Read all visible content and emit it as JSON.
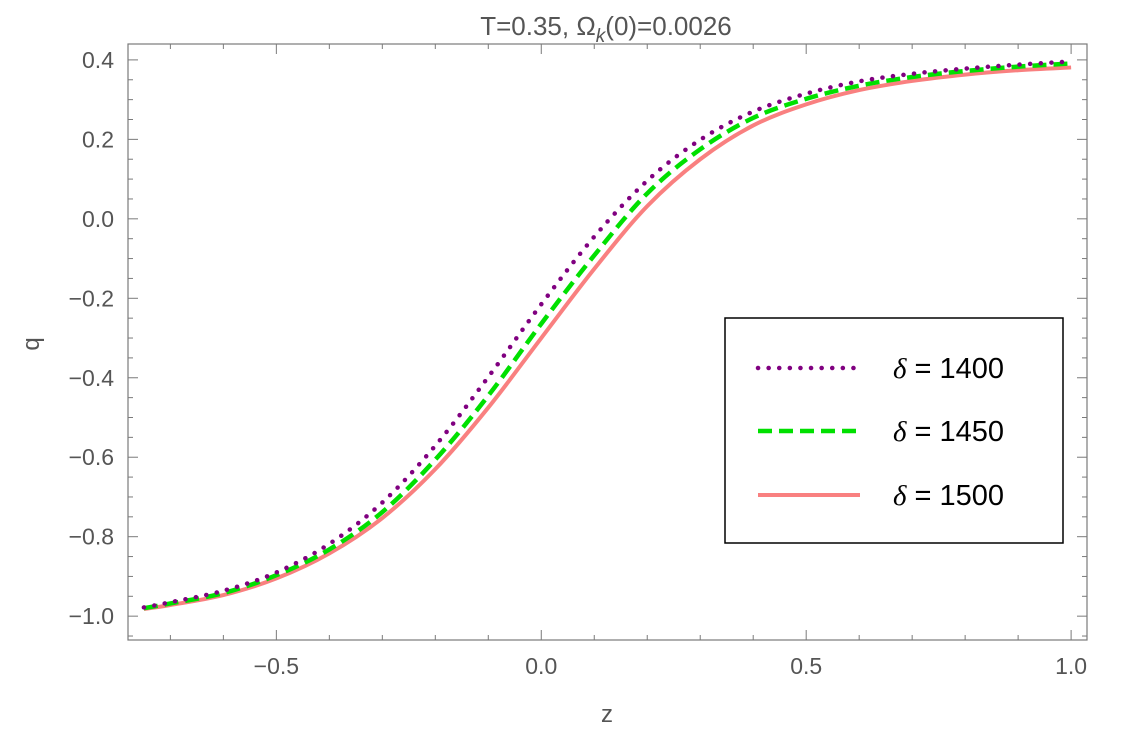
{
  "chart_data": {
    "type": "line",
    "title": "T=0.35, Ω",
    "title_sub": "k",
    "title_tail": "(0)=0.0026",
    "xlabel": "z",
    "ylabel": "q",
    "xlim": [
      -0.78,
      1.03
    ],
    "ylim": [
      -1.06,
      0.44
    ],
    "x_ticks": [
      -0.5,
      0.0,
      0.5,
      1.0
    ],
    "x_tick_labels": [
      "−0.5",
      "0.0",
      "0.5",
      "1.0"
    ],
    "y_ticks": [
      -1.0,
      -0.8,
      -0.6,
      -0.4,
      -0.2,
      0.0,
      0.2,
      0.4
    ],
    "y_tick_labels": [
      "−1.0",
      "−0.8",
      "−0.6",
      "−0.4",
      "−0.2",
      "0.0",
      "0.2",
      "0.4"
    ],
    "grid": false,
    "legend_position": "right",
    "series": [
      {
        "name": "δ = 1400",
        "symbol": "δ",
        "value_text": " = 1400",
        "color": "#800080",
        "style": "dotted",
        "x": [
          -0.75,
          -0.7,
          -0.6,
          -0.5,
          -0.4,
          -0.3,
          -0.2,
          -0.1,
          0.0,
          0.1,
          0.2,
          0.3,
          0.4,
          0.5,
          0.6,
          0.7,
          0.8,
          0.9,
          1.0
        ],
        "y": [
          -0.978,
          -0.965,
          -0.936,
          -0.89,
          -0.818,
          -0.714,
          -0.571,
          -0.398,
          -0.215,
          -0.045,
          0.096,
          0.199,
          0.27,
          0.315,
          0.346,
          0.365,
          0.378,
          0.388,
          0.396
        ]
      },
      {
        "name": "δ = 1450",
        "symbol": "δ",
        "value_text": " = 1450",
        "color": "#00e000",
        "style": "dashed",
        "x": [
          -0.75,
          -0.7,
          -0.6,
          -0.5,
          -0.4,
          -0.3,
          -0.2,
          -0.1,
          0.0,
          0.1,
          0.2,
          0.3,
          0.4,
          0.5,
          0.6,
          0.7,
          0.8,
          0.9,
          1.0
        ],
        "y": [
          -0.98,
          -0.968,
          -0.942,
          -0.897,
          -0.832,
          -0.738,
          -0.606,
          -0.445,
          -0.264,
          -0.092,
          0.064,
          0.175,
          0.254,
          0.302,
          0.335,
          0.357,
          0.372,
          0.383,
          0.391
        ]
      },
      {
        "name": "δ = 1500",
        "symbol": "δ",
        "value_text": " = 1500",
        "color": "#f98080",
        "style": "solid",
        "x": [
          -0.75,
          -0.7,
          -0.6,
          -0.5,
          -0.4,
          -0.3,
          -0.2,
          -0.1,
          0.0,
          0.1,
          0.2,
          0.3,
          0.4,
          0.5,
          0.6,
          0.7,
          0.8,
          0.9,
          1.0
        ],
        "y": [
          -0.982,
          -0.972,
          -0.947,
          -0.905,
          -0.842,
          -0.753,
          -0.63,
          -0.475,
          -0.3,
          -0.126,
          0.032,
          0.15,
          0.235,
          0.288,
          0.324,
          0.347,
          0.363,
          0.374,
          0.381
        ]
      }
    ]
  }
}
